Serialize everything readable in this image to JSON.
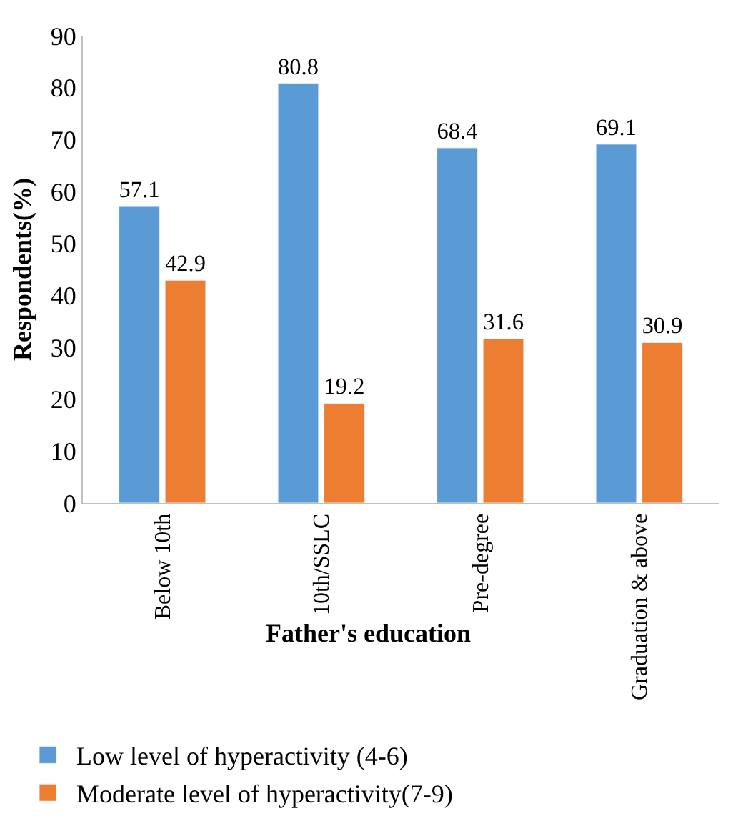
{
  "chart_data": {
    "type": "bar",
    "xlabel": "Father's education",
    "ylabel": "Respondents(%)",
    "categories": [
      "Below 10th",
      "10th/SSLC",
      "Pre-degree",
      "Graduation & above"
    ],
    "series": [
      {
        "name": "Low level of hyperactivity (4-6)",
        "color": "#5b9bd5",
        "values": [
          57.1,
          80.8,
          68.4,
          69.1
        ]
      },
      {
        "name": "Moderate level of hyperactivity(7-9)",
        "color": "#ed7d31",
        "values": [
          42.9,
          19.2,
          31.6,
          30.9
        ]
      }
    ],
    "ylim": [
      0,
      90
    ],
    "yticks": [
      0,
      10,
      20,
      30,
      40,
      50,
      60,
      70,
      80,
      90
    ],
    "data_labels": true,
    "grid": false,
    "legend": "bottom"
  }
}
